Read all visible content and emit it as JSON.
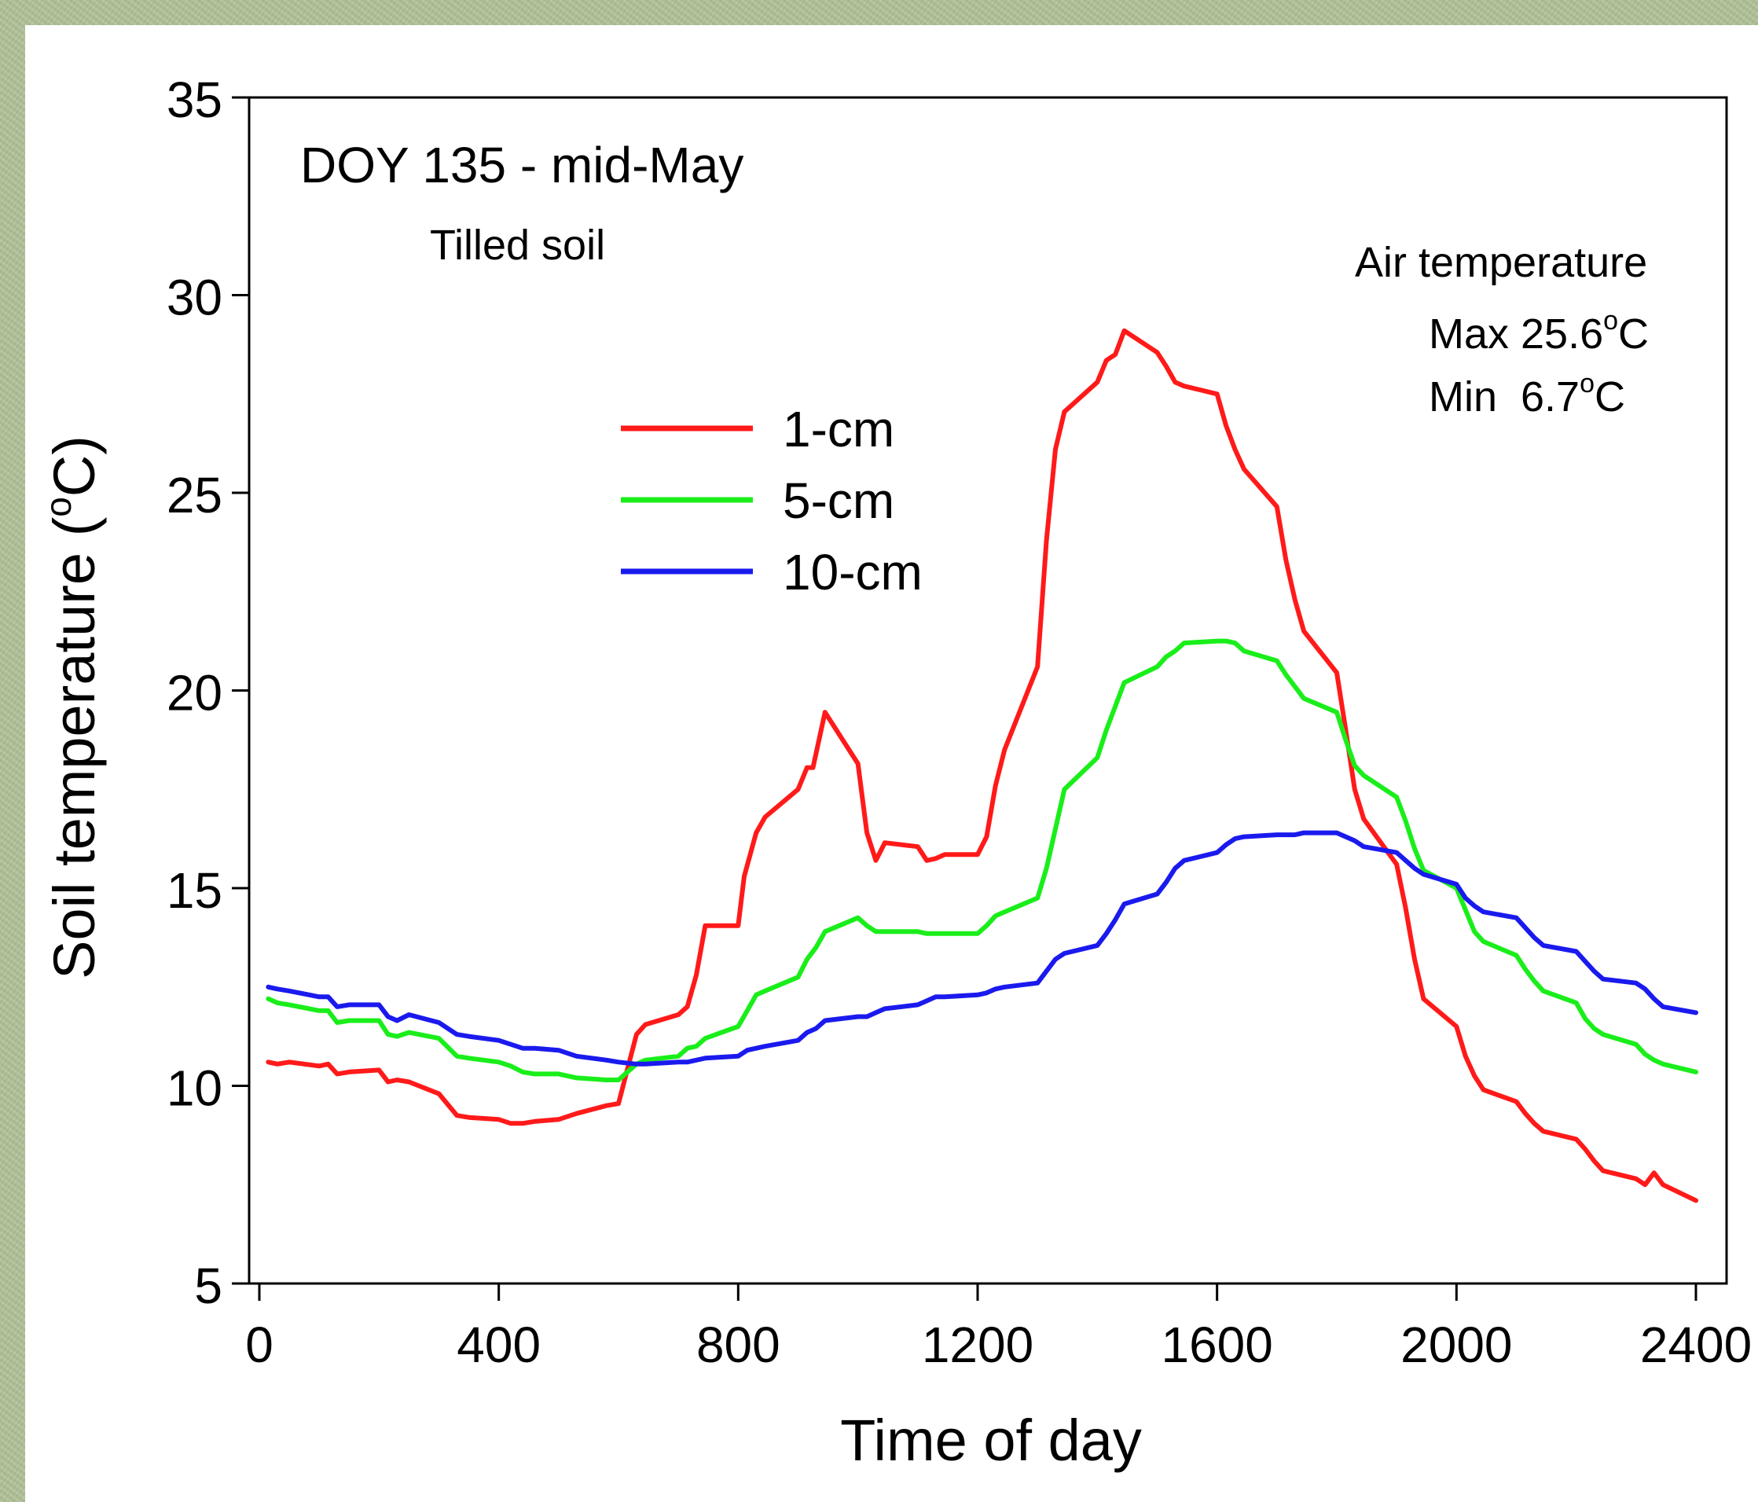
{
  "chart_data": {
    "type": "line",
    "title": "DOY 135 - mid-May",
    "subtitle": "Tilled soil",
    "xlabel": "Time of day",
    "ylabel": "Soil temperature (",
    "ylabel_sup": "o",
    "ylabel_end": "C)",
    "xlim": [
      0,
      2400
    ],
    "ylim": [
      5,
      35
    ],
    "x_ticks": [
      0,
      400,
      800,
      1200,
      1600,
      2000,
      2400
    ],
    "y_ticks": [
      5,
      10,
      15,
      20,
      25,
      30,
      35
    ],
    "grid": false,
    "legend_position": "upper-center",
    "annotation": {
      "title": "Air temperature",
      "max_label": "Max 25.6",
      "min_label": "Min  6.7",
      "deg": "o",
      "unit": "C"
    },
    "series": [
      {
        "name": "1-cm",
        "color": "#ff1a1a",
        "points": [
          [
            15,
            10.6
          ],
          [
            30,
            10.55
          ],
          [
            50,
            10.6
          ],
          [
            100,
            10.5
          ],
          [
            115,
            10.55
          ],
          [
            130,
            10.3
          ],
          [
            150,
            10.35
          ],
          [
            200,
            10.4
          ],
          [
            215,
            10.1
          ],
          [
            230,
            10.15
          ],
          [
            250,
            10.1
          ],
          [
            300,
            9.8
          ],
          [
            330,
            9.25
          ],
          [
            350,
            9.2
          ],
          [
            400,
            9.15
          ],
          [
            420,
            9.05
          ],
          [
            440,
            9.05
          ],
          [
            460,
            9.1
          ],
          [
            500,
            9.15
          ],
          [
            530,
            9.3
          ],
          [
            580,
            9.5
          ],
          [
            600,
            9.55
          ],
          [
            630,
            11.3
          ],
          [
            645,
            11.55
          ],
          [
            700,
            11.8
          ],
          [
            715,
            12.0
          ],
          [
            730,
            12.8
          ],
          [
            745,
            14.05
          ],
          [
            800,
            14.05
          ],
          [
            810,
            15.3
          ],
          [
            830,
            16.4
          ],
          [
            845,
            16.8
          ],
          [
            900,
            17.5
          ],
          [
            915,
            18.05
          ],
          [
            925,
            18.05
          ],
          [
            945,
            19.45
          ],
          [
            1000,
            18.15
          ],
          [
            1015,
            16.4
          ],
          [
            1030,
            15.7
          ],
          [
            1045,
            16.15
          ],
          [
            1100,
            16.05
          ],
          [
            1115,
            15.7
          ],
          [
            1130,
            15.75
          ],
          [
            1145,
            15.85
          ],
          [
            1200,
            15.85
          ],
          [
            1215,
            16.3
          ],
          [
            1230,
            17.6
          ],
          [
            1245,
            18.5
          ],
          [
            1300,
            20.6
          ],
          [
            1315,
            23.8
          ],
          [
            1330,
            26.1
          ],
          [
            1345,
            27.05
          ],
          [
            1400,
            27.8
          ],
          [
            1415,
            28.35
          ],
          [
            1430,
            28.5
          ],
          [
            1445,
            29.1
          ],
          [
            1500,
            28.55
          ],
          [
            1515,
            28.2
          ],
          [
            1530,
            27.8
          ],
          [
            1545,
            27.7
          ],
          [
            1600,
            27.5
          ],
          [
            1615,
            26.7
          ],
          [
            1630,
            26.1
          ],
          [
            1645,
            25.6
          ],
          [
            1700,
            24.65
          ],
          [
            1715,
            23.3
          ],
          [
            1730,
            22.3
          ],
          [
            1745,
            21.5
          ],
          [
            1800,
            20.45
          ],
          [
            1815,
            19.0
          ],
          [
            1830,
            17.5
          ],
          [
            1845,
            16.75
          ],
          [
            1900,
            15.6
          ],
          [
            1915,
            14.5
          ],
          [
            1930,
            13.2
          ],
          [
            1945,
            12.2
          ],
          [
            2000,
            11.5
          ],
          [
            2015,
            10.75
          ],
          [
            2030,
            10.25
          ],
          [
            2045,
            9.9
          ],
          [
            2100,
            9.6
          ],
          [
            2115,
            9.3
          ],
          [
            2130,
            9.05
          ],
          [
            2145,
            8.85
          ],
          [
            2200,
            8.65
          ],
          [
            2215,
            8.4
          ],
          [
            2230,
            8.1
          ],
          [
            2245,
            7.85
          ],
          [
            2300,
            7.65
          ],
          [
            2315,
            7.5
          ],
          [
            2330,
            7.8
          ],
          [
            2345,
            7.5
          ],
          [
            2400,
            7.1
          ]
        ]
      },
      {
        "name": "5-cm",
        "color": "#1aee1a",
        "points": [
          [
            15,
            12.2
          ],
          [
            30,
            12.1
          ],
          [
            50,
            12.05
          ],
          [
            100,
            11.9
          ],
          [
            115,
            11.9
          ],
          [
            130,
            11.6
          ],
          [
            150,
            11.65
          ],
          [
            200,
            11.65
          ],
          [
            215,
            11.3
          ],
          [
            230,
            11.25
          ],
          [
            250,
            11.35
          ],
          [
            300,
            11.2
          ],
          [
            330,
            10.75
          ],
          [
            350,
            10.7
          ],
          [
            400,
            10.6
          ],
          [
            420,
            10.5
          ],
          [
            440,
            10.35
          ],
          [
            460,
            10.3
          ],
          [
            500,
            10.3
          ],
          [
            530,
            10.2
          ],
          [
            580,
            10.15
          ],
          [
            600,
            10.15
          ],
          [
            630,
            10.55
          ],
          [
            645,
            10.65
          ],
          [
            700,
            10.75
          ],
          [
            715,
            10.95
          ],
          [
            730,
            11.0
          ],
          [
            745,
            11.2
          ],
          [
            800,
            11.5
          ],
          [
            815,
            11.9
          ],
          [
            830,
            12.3
          ],
          [
            845,
            12.4
          ],
          [
            900,
            12.75
          ],
          [
            915,
            13.2
          ],
          [
            930,
            13.5
          ],
          [
            945,
            13.9
          ],
          [
            1000,
            14.25
          ],
          [
            1015,
            14.05
          ],
          [
            1030,
            13.9
          ],
          [
            1045,
            13.9
          ],
          [
            1100,
            13.9
          ],
          [
            1115,
            13.85
          ],
          [
            1130,
            13.85
          ],
          [
            1145,
            13.85
          ],
          [
            1200,
            13.85
          ],
          [
            1215,
            14.05
          ],
          [
            1230,
            14.3
          ],
          [
            1245,
            14.4
          ],
          [
            1300,
            14.75
          ],
          [
            1315,
            15.5
          ],
          [
            1330,
            16.5
          ],
          [
            1345,
            17.5
          ],
          [
            1400,
            18.3
          ],
          [
            1415,
            19.0
          ],
          [
            1430,
            19.6
          ],
          [
            1445,
            20.2
          ],
          [
            1500,
            20.6
          ],
          [
            1515,
            20.85
          ],
          [
            1530,
            21.0
          ],
          [
            1545,
            21.2
          ],
          [
            1600,
            21.25
          ],
          [
            1615,
            21.25
          ],
          [
            1630,
            21.2
          ],
          [
            1645,
            21.0
          ],
          [
            1700,
            20.75
          ],
          [
            1715,
            20.4
          ],
          [
            1730,
            20.1
          ],
          [
            1745,
            19.8
          ],
          [
            1800,
            19.45
          ],
          [
            1815,
            18.75
          ],
          [
            1830,
            18.1
          ],
          [
            1845,
            17.85
          ],
          [
            1900,
            17.3
          ],
          [
            1915,
            16.7
          ],
          [
            1930,
            16.0
          ],
          [
            1945,
            15.45
          ],
          [
            2000,
            15.0
          ],
          [
            2015,
            14.45
          ],
          [
            2030,
            13.9
          ],
          [
            2045,
            13.65
          ],
          [
            2100,
            13.3
          ],
          [
            2115,
            12.95
          ],
          [
            2130,
            12.65
          ],
          [
            2145,
            12.4
          ],
          [
            2200,
            12.1
          ],
          [
            2215,
            11.7
          ],
          [
            2230,
            11.45
          ],
          [
            2245,
            11.3
          ],
          [
            2300,
            11.05
          ],
          [
            2315,
            10.8
          ],
          [
            2330,
            10.65
          ],
          [
            2345,
            10.55
          ],
          [
            2400,
            10.35
          ]
        ]
      },
      {
        "name": "10-cm",
        "color": "#1a1aee",
        "points": [
          [
            15,
            12.5
          ],
          [
            30,
            12.45
          ],
          [
            50,
            12.4
          ],
          [
            100,
            12.25
          ],
          [
            115,
            12.25
          ],
          [
            130,
            12.0
          ],
          [
            150,
            12.05
          ],
          [
            200,
            12.05
          ],
          [
            215,
            11.75
          ],
          [
            230,
            11.65
          ],
          [
            250,
            11.8
          ],
          [
            300,
            11.6
          ],
          [
            330,
            11.3
          ],
          [
            350,
            11.25
          ],
          [
            400,
            11.15
          ],
          [
            420,
            11.05
          ],
          [
            440,
            10.95
          ],
          [
            460,
            10.95
          ],
          [
            500,
            10.9
          ],
          [
            530,
            10.75
          ],
          [
            580,
            10.65
          ],
          [
            600,
            10.6
          ],
          [
            630,
            10.55
          ],
          [
            645,
            10.55
          ],
          [
            700,
            10.6
          ],
          [
            715,
            10.6
          ],
          [
            730,
            10.65
          ],
          [
            745,
            10.7
          ],
          [
            800,
            10.75
          ],
          [
            815,
            10.9
          ],
          [
            830,
            10.95
          ],
          [
            845,
            11.0
          ],
          [
            900,
            11.15
          ],
          [
            915,
            11.35
          ],
          [
            930,
            11.45
          ],
          [
            945,
            11.65
          ],
          [
            1000,
            11.75
          ],
          [
            1015,
            11.75
          ],
          [
            1030,
            11.85
          ],
          [
            1045,
            11.95
          ],
          [
            1100,
            12.05
          ],
          [
            1115,
            12.15
          ],
          [
            1130,
            12.25
          ],
          [
            1145,
            12.25
          ],
          [
            1200,
            12.3
          ],
          [
            1215,
            12.35
          ],
          [
            1230,
            12.45
          ],
          [
            1245,
            12.5
          ],
          [
            1300,
            12.6
          ],
          [
            1315,
            12.9
          ],
          [
            1330,
            13.2
          ],
          [
            1345,
            13.35
          ],
          [
            1400,
            13.55
          ],
          [
            1415,
            13.85
          ],
          [
            1430,
            14.2
          ],
          [
            1445,
            14.6
          ],
          [
            1500,
            14.85
          ],
          [
            1515,
            15.15
          ],
          [
            1530,
            15.5
          ],
          [
            1545,
            15.7
          ],
          [
            1600,
            15.9
          ],
          [
            1615,
            16.1
          ],
          [
            1630,
            16.25
          ],
          [
            1645,
            16.3
          ],
          [
            1700,
            16.35
          ],
          [
            1715,
            16.35
          ],
          [
            1730,
            16.35
          ],
          [
            1745,
            16.4
          ],
          [
            1800,
            16.4
          ],
          [
            1815,
            16.3
          ],
          [
            1830,
            16.2
          ],
          [
            1845,
            16.05
          ],
          [
            1900,
            15.9
          ],
          [
            1915,
            15.7
          ],
          [
            1930,
            15.5
          ],
          [
            1945,
            15.35
          ],
          [
            2000,
            15.1
          ],
          [
            2015,
            14.75
          ],
          [
            2030,
            14.55
          ],
          [
            2045,
            14.4
          ],
          [
            2100,
            14.25
          ],
          [
            2115,
            14.0
          ],
          [
            2130,
            13.75
          ],
          [
            2145,
            13.55
          ],
          [
            2200,
            13.4
          ],
          [
            2215,
            13.15
          ],
          [
            2230,
            12.9
          ],
          [
            2245,
            12.7
          ],
          [
            2300,
            12.6
          ],
          [
            2315,
            12.45
          ],
          [
            2330,
            12.2
          ],
          [
            2345,
            12.0
          ],
          [
            2400,
            11.85
          ]
        ]
      }
    ]
  }
}
